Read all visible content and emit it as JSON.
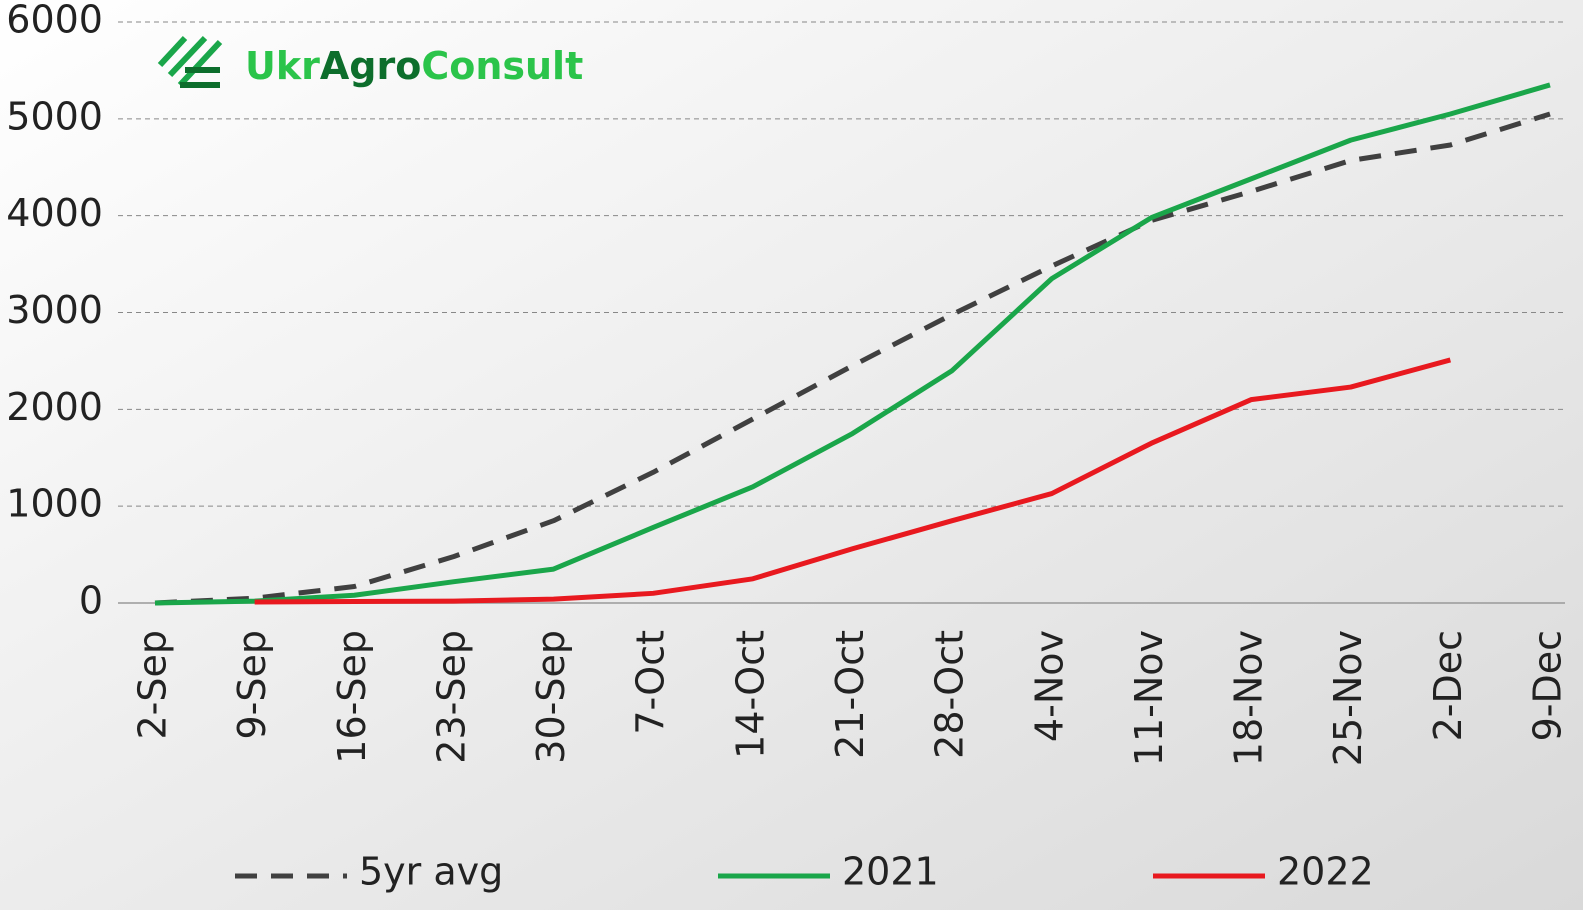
{
  "chart_data": {
    "type": "line",
    "logo": [
      "Ukr",
      "Agro",
      "Consult"
    ],
    "categories": [
      "2-Sep",
      "9-Sep",
      "16-Sep",
      "23-Sep",
      "30-Sep",
      "7-Oct",
      "14-Oct",
      "21-Oct",
      "28-Oct",
      "4-Nov",
      "11-Nov",
      "18-Nov",
      "25-Nov",
      "2-Dec",
      "9-Dec"
    ],
    "series": [
      {
        "name": "5yr avg",
        "color": "#404040",
        "dash": true,
        "values": [
          0,
          50,
          170,
          480,
          850,
          1350,
          1900,
          2450,
          2980,
          3480,
          3950,
          4250,
          4570,
          4730,
          5050
        ]
      },
      {
        "name": "2021",
        "color": "#1aa64a",
        "values": [
          0,
          20,
          80,
          220,
          350,
          780,
          1200,
          1750,
          2400,
          3350,
          3980,
          4380,
          4780,
          5050,
          5350
        ]
      },
      {
        "name": "2022",
        "color": "#e8191f",
        "values": [
          null,
          10,
          15,
          20,
          40,
          100,
          250,
          560,
          850,
          1130,
          1650,
          2100,
          2230,
          2510,
          null
        ]
      }
    ],
    "ylim": [
      0,
      6000
    ],
    "yticks": [
      0,
      1000,
      2000,
      3000,
      4000,
      5000,
      6000
    ],
    "grid": true,
    "legend": "bottom"
  }
}
